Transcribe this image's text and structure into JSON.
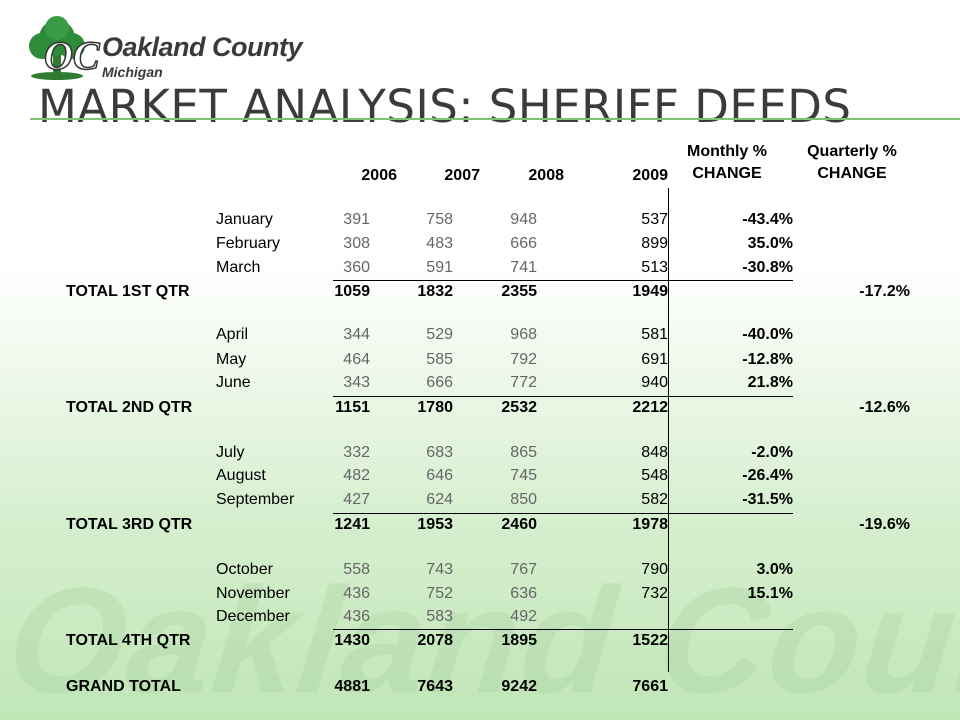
{
  "logo": {
    "name": "Oakland County",
    "state": "Michigan",
    "mark": "OC"
  },
  "title": "MARKET ANALYSIS: SHERIFF DEEDS",
  "watermark": "Oakland County",
  "columns": {
    "years": [
      "2006",
      "2007",
      "2008",
      "2009"
    ],
    "monthly_top": "Monthly %",
    "monthly_bottom": "CHANGE",
    "quarterly_top": "Quarterly %",
    "quarterly_bottom": "CHANGE"
  },
  "quarters": [
    {
      "months": [
        {
          "name": "January",
          "values": [
            "391",
            "758",
            "948",
            "537"
          ],
          "monthly": "-43.4%"
        },
        {
          "name": "February",
          "values": [
            "308",
            "483",
            "666",
            "899"
          ],
          "monthly": "35.0%"
        },
        {
          "name": "March",
          "values": [
            "360",
            "591",
            "741",
            "513"
          ],
          "monthly": "-30.8%"
        }
      ],
      "total_label": "TOTAL 1ST QTR",
      "totals": [
        "1059",
        "1832",
        "2355",
        "1949"
      ],
      "quarterly": "-17.2%"
    },
    {
      "months": [
        {
          "name": "April",
          "values": [
            "344",
            "529",
            "968",
            "581"
          ],
          "monthly": "-40.0%"
        },
        {
          "name": "May",
          "values": [
            "464",
            "585",
            "792",
            "691"
          ],
          "monthly": "-12.8%"
        },
        {
          "name": "June",
          "values": [
            "343",
            "666",
            "772",
            "940"
          ],
          "monthly": "21.8%"
        }
      ],
      "total_label": "TOTAL 2ND QTR",
      "totals": [
        "1151",
        "1780",
        "2532",
        "2212"
      ],
      "quarterly": "-12.6%"
    },
    {
      "months": [
        {
          "name": "July",
          "values": [
            "332",
            "683",
            "865",
            "848"
          ],
          "monthly": "-2.0%"
        },
        {
          "name": "August",
          "values": [
            "482",
            "646",
            "745",
            "548"
          ],
          "monthly": "-26.4%"
        },
        {
          "name": "September",
          "values": [
            "427",
            "624",
            "850",
            "582"
          ],
          "monthly": "-31.5%"
        }
      ],
      "total_label": "TOTAL 3RD QTR",
      "totals": [
        "1241",
        "1953",
        "2460",
        "1978"
      ],
      "quarterly": "-19.6%"
    },
    {
      "months": [
        {
          "name": "October",
          "values": [
            "558",
            "743",
            "767",
            "790"
          ],
          "monthly": "3.0%"
        },
        {
          "name": "November",
          "values": [
            "436",
            "752",
            "636",
            "732"
          ],
          "monthly": "15.1%"
        },
        {
          "name": "December",
          "values": [
            "436",
            "583",
            "492",
            ""
          ],
          "monthly": ""
        }
      ],
      "total_label": "TOTAL 4TH QTR",
      "totals": [
        "1430",
        "2078",
        "1895",
        "1522"
      ],
      "quarterly": ""
    }
  ],
  "grand_total": {
    "label": "GRAND TOTAL",
    "values": [
      "4881",
      "7643",
      "9242",
      "7661"
    ]
  }
}
